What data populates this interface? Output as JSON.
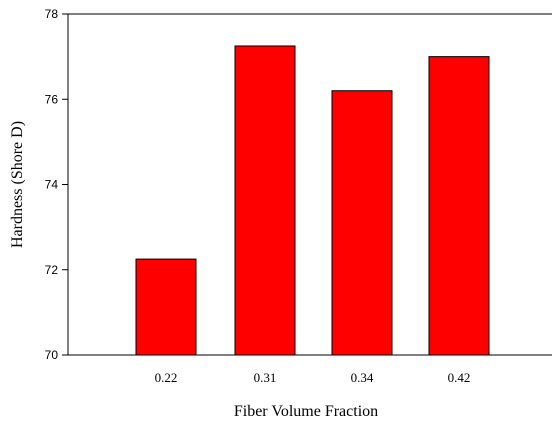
{
  "chart_data": {
    "type": "bar",
    "categories": [
      "0.22",
      "0.31",
      "0.34",
      "0.42"
    ],
    "values": [
      72.25,
      77.25,
      76.2,
      77.0
    ],
    "xlabel": "Fiber Volume Fraction",
    "ylabel": "Hardness (Shore D)",
    "ylim": [
      70,
      78
    ],
    "yticks": [
      "70",
      "72",
      "74",
      "76",
      "78"
    ],
    "grid": false,
    "legend": "none",
    "bar_color": "#ff0000",
    "bar_edge_color": "#000000"
  }
}
